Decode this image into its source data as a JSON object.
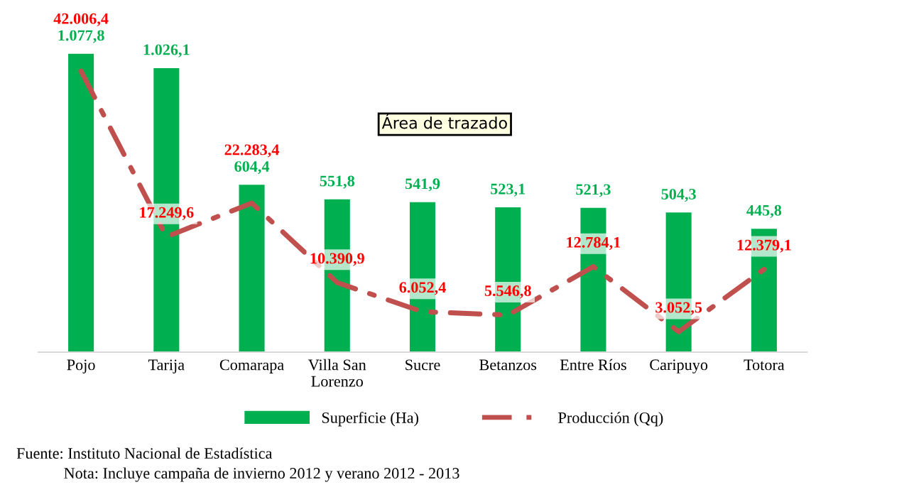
{
  "chart_data": {
    "type": "bar",
    "categories": [
      "Pojo",
      "Tarija",
      "Comarapa",
      "Villa San\nLorenzo",
      "Sucre",
      "Betanzos",
      "Entre Ríos",
      "Caripuyo",
      "Totora"
    ],
    "series": [
      {
        "name": "Superficie (Ha)",
        "color": "#00b050",
        "values": [
          1077.8,
          1026.1,
          604.4,
          551.8,
          541.9,
          523.1,
          521.3,
          504.3,
          445.8
        ],
        "value_labels": [
          "1.077,8",
          "1.026,1",
          "604,4",
          "551,8",
          "541,9",
          "523,1",
          "521,3",
          "504,3",
          "445,8"
        ]
      },
      {
        "name": "Producción (Qq)",
        "type": "line",
        "axis": "y2",
        "color": "#c0504d",
        "values": [
          42006.4,
          17249.6,
          22283.4,
          10390.9,
          6052.4,
          5546.8,
          12784.1,
          3052.5,
          12379.1
        ],
        "value_labels": [
          "42.006,4",
          "17.249,6",
          "22.283,4",
          "10.390,9",
          "6.052,4",
          "5.546,8",
          "12.784,1",
          "3.052,5",
          "12.379,1"
        ]
      }
    ],
    "tick_labels": "x",
    "line_style": "dashed",
    "marker": "none",
    "grid": false,
    "legend": "bottom",
    "annotations": [
      "Área de trazado",
      "Fuente: Instituto Nacional de Estadística",
      "Nota: Incluye campaña de invierno 2012 y verano 2012 - 2013"
    ]
  }
}
